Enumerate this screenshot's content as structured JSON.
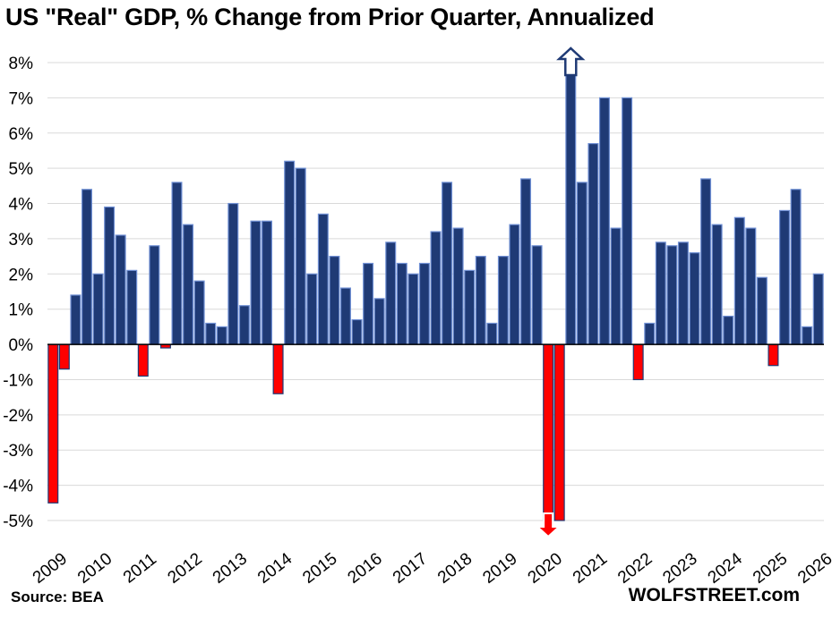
{
  "title": "US \"Real\" GDP, % Change from Prior Quarter, Annualized",
  "source": "Source: BEA",
  "brand": "WOLFSTREET.com",
  "colors": {
    "positive_fill": "#1f3a75",
    "positive_stroke": "#6f8fd4",
    "negative_fill": "#ff0000",
    "negative_stroke": "#1f3a75",
    "grid": "#d9d9d9",
    "axis": "#000000",
    "up_arrow_fill": "#ffffff",
    "up_arrow_stroke": "#1f3a75",
    "down_arrow_fill": "#ff0000",
    "down_arrow_stroke": "#ffffff"
  },
  "chart_data": {
    "type": "bar",
    "title": "US \"Real\" GDP, % Change from Prior Quarter, Annualized",
    "xlabel": "",
    "ylabel": "",
    "ylim": [
      -5,
      8
    ],
    "grid": true,
    "y_ticks": [
      "8%",
      "7%",
      "6%",
      "5%",
      "4%",
      "3%",
      "2%",
      "1%",
      "0%",
      "-1%",
      "-2%",
      "-3%",
      "-4%",
      "-5%"
    ],
    "x_tick_labels": [
      "2009",
      "2010",
      "2011",
      "2012",
      "2013",
      "2014",
      "2015",
      "2016",
      "2017",
      "2018",
      "2019",
      "2020",
      "2021",
      "2022",
      "2023",
      "2024",
      "2025",
      "2026"
    ],
    "series": [
      {
        "values": [
          -4.5,
          -0.7,
          1.4,
          4.4,
          2.0,
          3.9,
          3.1,
          2.1,
          -0.9,
          2.8,
          -0.1,
          4.6,
          3.4,
          1.8,
          0.6,
          0.5,
          4.0,
          1.1,
          3.5,
          3.5,
          -1.4,
          5.2,
          5.0,
          2.0,
          3.7,
          2.5,
          1.6,
          0.7,
          2.3,
          1.3,
          2.9,
          2.3,
          2.0,
          2.3,
          3.2,
          4.6,
          3.3,
          2.1,
          2.5,
          0.6,
          2.5,
          3.4,
          4.7,
          2.8,
          -5.0,
          -5.0,
          8.0,
          4.6,
          5.7,
          7.0,
          3.3,
          7.0,
          -1.0,
          0.6,
          2.9,
          2.8,
          2.9,
          2.6,
          4.7,
          3.4,
          0.8,
          3.6,
          3.3,
          1.9,
          -0.6,
          3.8,
          4.4,
          0.5,
          2.0
        ]
      }
    ],
    "offscale_annotations": [
      {
        "quarter_index": 44,
        "direction": "down",
        "note": "bar extends below axis"
      },
      {
        "quarter_index": 46,
        "direction": "up",
        "note": "bar extends above axis"
      }
    ]
  }
}
